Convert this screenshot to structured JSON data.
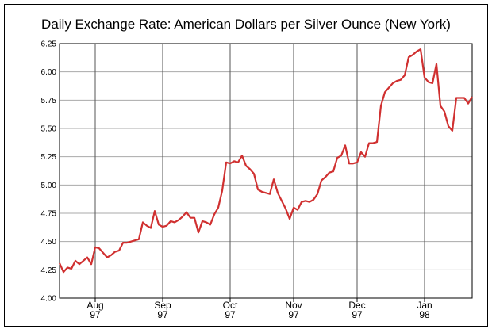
{
  "chart_data": {
    "type": "line",
    "title": "Daily Exchange Rate: American Dollars per Silver Ounce (New York)",
    "categories": [
      null,
      null,
      null,
      null,
      null,
      null,
      null,
      null,
      null,
      "Aug 97",
      null,
      null,
      null,
      null,
      null,
      null,
      null,
      null,
      null,
      null,
      null,
      null,
      null,
      null,
      null,
      null,
      "Sep 97",
      null,
      null,
      null,
      null,
      null,
      null,
      null,
      null,
      null,
      null,
      null,
      null,
      null,
      null,
      null,
      null,
      "Oct 97",
      null,
      null,
      null,
      null,
      null,
      null,
      null,
      null,
      null,
      null,
      null,
      null,
      null,
      null,
      null,
      "Nov 97",
      null,
      null,
      null,
      null,
      null,
      null,
      null,
      null,
      null,
      null,
      null,
      null,
      null,
      null,
      null,
      "Dec 97",
      null,
      null,
      null,
      null,
      null,
      null,
      null,
      null,
      null,
      null,
      null,
      null,
      null,
      null,
      null,
      null,
      "Jan 98",
      null,
      null,
      null,
      null,
      null,
      null,
      null,
      null,
      null,
      null,
      null,
      null
    ],
    "series": [
      {
        "color": "#d03030",
        "values": [
          4.31,
          4.23,
          4.27,
          4.26,
          4.33,
          4.3,
          4.33,
          4.36,
          4.3,
          4.45,
          4.44,
          4.4,
          4.36,
          4.38,
          4.41,
          4.42,
          4.49,
          4.49,
          4.5,
          4.51,
          4.52,
          4.67,
          4.64,
          4.62,
          4.77,
          4.65,
          4.63,
          4.64,
          4.68,
          4.67,
          4.69,
          4.72,
          4.76,
          4.71,
          4.71,
          4.58,
          4.68,
          4.67,
          4.65,
          4.74,
          4.8,
          4.95,
          5.2,
          5.19,
          5.21,
          5.2,
          5.26,
          5.17,
          5.14,
          5.1,
          4.96,
          4.94,
          4.93,
          4.92,
          5.05,
          4.93,
          4.86,
          4.79,
          4.7,
          4.8,
          4.78,
          4.85,
          4.86,
          4.85,
          4.87,
          4.92,
          5.04,
          5.07,
          5.11,
          5.12,
          5.24,
          5.26,
          5.35,
          5.19,
          5.19,
          5.2,
          5.29,
          5.25,
          5.37,
          5.37,
          5.38,
          5.7,
          5.82,
          5.86,
          5.9,
          5.92,
          5.93,
          5.97,
          6.13,
          6.15,
          6.18,
          6.2,
          5.95,
          5.91,
          5.9,
          6.07,
          5.7,
          5.65,
          5.52,
          5.48,
          5.77,
          5.77,
          5.77,
          5.72,
          5.78
        ]
      }
    ],
    "ylim": [
      4,
      6.25
    ],
    "yticks": [
      {
        "value": 4,
        "label": "4.00"
      },
      4.25,
      {
        "value": 4.5,
        "label": "4.50"
      },
      4.75,
      {
        "value": 5,
        "label": "5.00"
      },
      5.25,
      {
        "value": 5.5,
        "label": "5.50"
      },
      5.75,
      {
        "value": 6,
        "label": "6.00"
      },
      6.25
    ],
    "grid": true
  }
}
